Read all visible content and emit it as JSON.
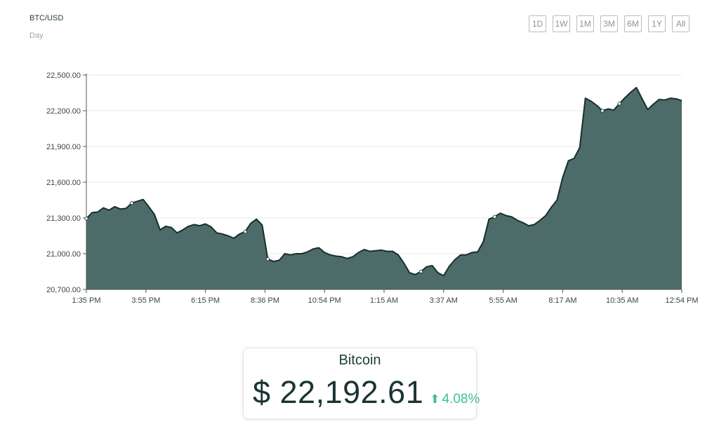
{
  "header": {
    "pair": "BTC/USD",
    "period": "Day",
    "ranges": [
      "1D",
      "1W",
      "1M",
      "3M",
      "6M",
      "1Y",
      "All"
    ]
  },
  "colors": {
    "area_fill": "#4d6b68",
    "line": "#17302e",
    "gain": "#3fbf8f"
  },
  "chart_data": {
    "type": "area",
    "title": "",
    "xlabel": "",
    "ylabel": "",
    "ylim": [
      20700,
      22500
    ],
    "y_ticks": [
      "22,500.00",
      "22,200.00",
      "21,900.00",
      "21,600.00",
      "21,300.00",
      "21,000.00",
      "20,700.00"
    ],
    "y_tick_values": [
      22500,
      22200,
      21900,
      21600,
      21300,
      21000,
      20700
    ],
    "x_ticks": [
      "1:35 PM",
      "3:55 PM",
      "6:15 PM",
      "8:36 PM",
      "10:54 PM",
      "1:15 AM",
      "3:37 AM",
      "5:55 AM",
      "8:17 AM",
      "10:35 AM",
      "12:54 PM"
    ],
    "grid": true,
    "series": [
      {
        "values": [
          21295,
          21345,
          21350,
          21385,
          21365,
          21395,
          21375,
          21380,
          21425,
          21440,
          21455,
          21395,
          21330,
          21200,
          21230,
          21220,
          21175,
          21200,
          21230,
          21245,
          21235,
          21250,
          21225,
          21175,
          21165,
          21150,
          21130,
          21165,
          21185,
          21255,
          21290,
          21240,
          20955,
          20935,
          20945,
          21000,
          20990,
          21000,
          21000,
          21015,
          21040,
          21050,
          21010,
          20990,
          20980,
          20975,
          20960,
          20975,
          21010,
          21035,
          21020,
          21025,
          21030,
          21020,
          21020,
          20990,
          20920,
          20840,
          20825,
          20850,
          20890,
          20900,
          20840,
          20815,
          20895,
          20950,
          20990,
          20990,
          21010,
          21015,
          21100,
          21290,
          21310,
          21340,
          21320,
          21310,
          21280,
          21260,
          21235,
          21245,
          21280,
          21320,
          21390,
          21450,
          21640,
          21780,
          21800,
          21890,
          22305,
          22280,
          22245,
          22200,
          22215,
          22205,
          22260,
          22310,
          22355,
          22395,
          22300,
          22210,
          22255,
          22295,
          22290,
          22305,
          22300,
          22285
        ]
      }
    ],
    "marked_points": [
      0,
      8,
      28,
      32,
      59,
      72,
      91,
      94
    ]
  },
  "card": {
    "name": "Bitcoin",
    "price": "$ 22,192.61",
    "change": "4.08%",
    "change_icon": "arrow-up-icon"
  }
}
